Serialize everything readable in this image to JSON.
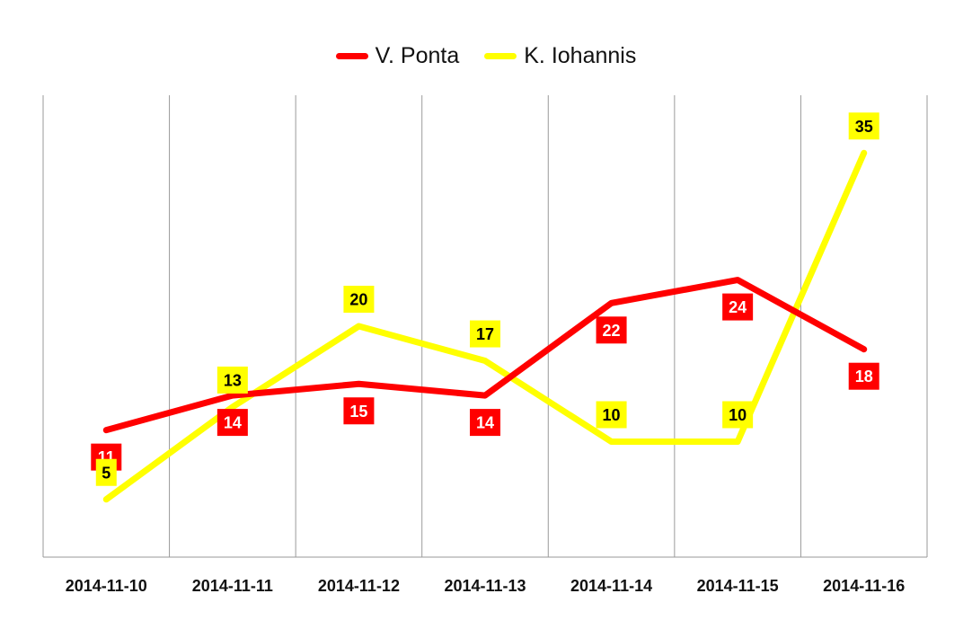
{
  "chart_data": {
    "type": "line",
    "title": "",
    "xlabel": "",
    "ylabel": "",
    "categories": [
      "2014-11-10",
      "2014-11-11",
      "2014-11-12",
      "2014-11-13",
      "2014-11-14",
      "2014-11-15",
      "2014-11-16"
    ],
    "series": [
      {
        "name": "V. Ponta",
        "color": "#ff0000",
        "label_color": "#ffffff",
        "values": [
          11,
          14,
          15,
          14,
          22,
          24,
          18
        ]
      },
      {
        "name": "K. Iohannis",
        "color": "#ffff00",
        "label_color": "#000000",
        "values": [
          5,
          13,
          20,
          17,
          10,
          10,
          35
        ]
      }
    ],
    "ylim": [
      0,
      40
    ],
    "grid": "vertical",
    "legend": "top-center"
  }
}
